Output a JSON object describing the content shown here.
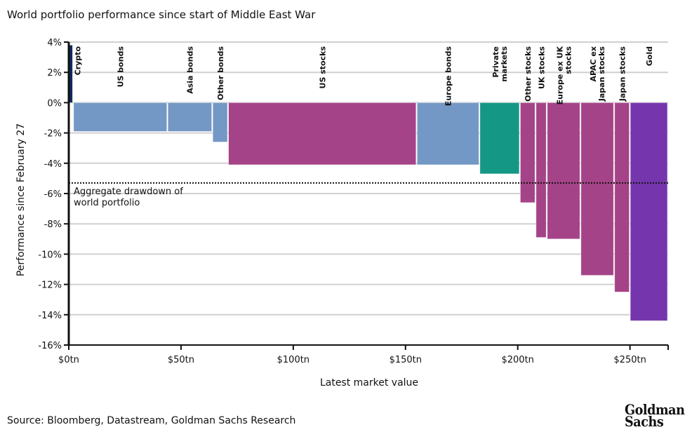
{
  "title": "World portfolio performance since start of Middle East War",
  "source": "Source: Bloomberg, Datastream, Goldman Sachs Research",
  "logo": {
    "line1": "Goldman",
    "line2": "Sachs"
  },
  "chart_data": {
    "type": "bar",
    "subtype": "variable-width (marimekko)",
    "title": "World portfolio performance since start of Middle East War",
    "xlabel": "Latest market value",
    "ylabel": "Performance since February 27",
    "xlim": [
      0,
      267
    ],
    "ylim": [
      -16,
      4
    ],
    "x_ticks": [
      0,
      50,
      100,
      150,
      200,
      250
    ],
    "x_tick_labels": [
      "$0tn",
      "$50tn",
      "$100tn",
      "$150tn",
      "$200tn",
      "$250tn"
    ],
    "y_ticks": [
      4,
      2,
      0,
      -2,
      -4,
      -6,
      -8,
      -10,
      -12,
      -14,
      -16
    ],
    "y_tick_labels": [
      "4%",
      "2%",
      "0%",
      "-2%",
      "-4%",
      "-6%",
      "-8%",
      "-10%",
      "-12%",
      "-14%",
      "-16%"
    ],
    "grid": true,
    "bars": [
      {
        "label": "Crypto",
        "x_start": 0,
        "x_end": 2,
        "value": 3.8,
        "color": "#0d2a5c"
      },
      {
        "label": "US bonds",
        "x_start": 2,
        "x_end": 44,
        "value": -1.9,
        "color": "#7398c5"
      },
      {
        "label": "Asia bonds",
        "x_start": 44,
        "x_end": 64,
        "value": -1.9,
        "color": "#7398c5"
      },
      {
        "label": "Other bonds",
        "x_start": 64,
        "x_end": 71,
        "value": -2.6,
        "color": "#7398c5"
      },
      {
        "label": "US stocks",
        "x_start": 71,
        "x_end": 155,
        "value": -4.1,
        "color": "#a54388"
      },
      {
        "label": "Europe bonds",
        "x_start": 155,
        "x_end": 183,
        "value": -4.1,
        "color": "#7398c5"
      },
      {
        "label": "Private markets",
        "x_start": 183,
        "x_end": 201,
        "value": -4.7,
        "color": "#159785"
      },
      {
        "label": "Other stocks",
        "x_start": 201,
        "x_end": 208,
        "value": -6.6,
        "color": "#a54388"
      },
      {
        "label": "UK stocks",
        "x_start": 208,
        "x_end": 213,
        "value": -8.9,
        "color": "#a54388"
      },
      {
        "label": "Europe ex UK stocks",
        "x_start": 213,
        "x_end": 228,
        "value": -9.0,
        "color": "#a54388"
      },
      {
        "label": "APAC ex Japan stocks",
        "x_start": 228,
        "x_end": 243,
        "value": -11.4,
        "color": "#a54388"
      },
      {
        "label": "Japan stocks",
        "x_start": 243,
        "x_end": 250,
        "value": -12.5,
        "color": "#a54388"
      },
      {
        "label": "Gold",
        "x_start": 250,
        "x_end": 267,
        "value": -14.4,
        "color": "#7536ad"
      }
    ],
    "label_lines": [
      [
        "Crypto"
      ],
      [
        "US bonds"
      ],
      [
        "Asia bonds"
      ],
      [
        "Other bonds"
      ],
      [
        "US stocks"
      ],
      [
        "Europe bonds"
      ],
      [
        "Private",
        "markets"
      ],
      [
        "Other stocks"
      ],
      [
        "UK stocks"
      ],
      [
        "Europe ex UK",
        "stocks"
      ],
      [
        "APAC ex",
        "Japan stocks"
      ],
      [
        "Japan stocks"
      ],
      [
        "Gold"
      ]
    ],
    "reference_line": {
      "value": -5.3,
      "style": "dotted",
      "label": [
        "Aggregate drawdown of",
        "world portfolio"
      ]
    }
  }
}
